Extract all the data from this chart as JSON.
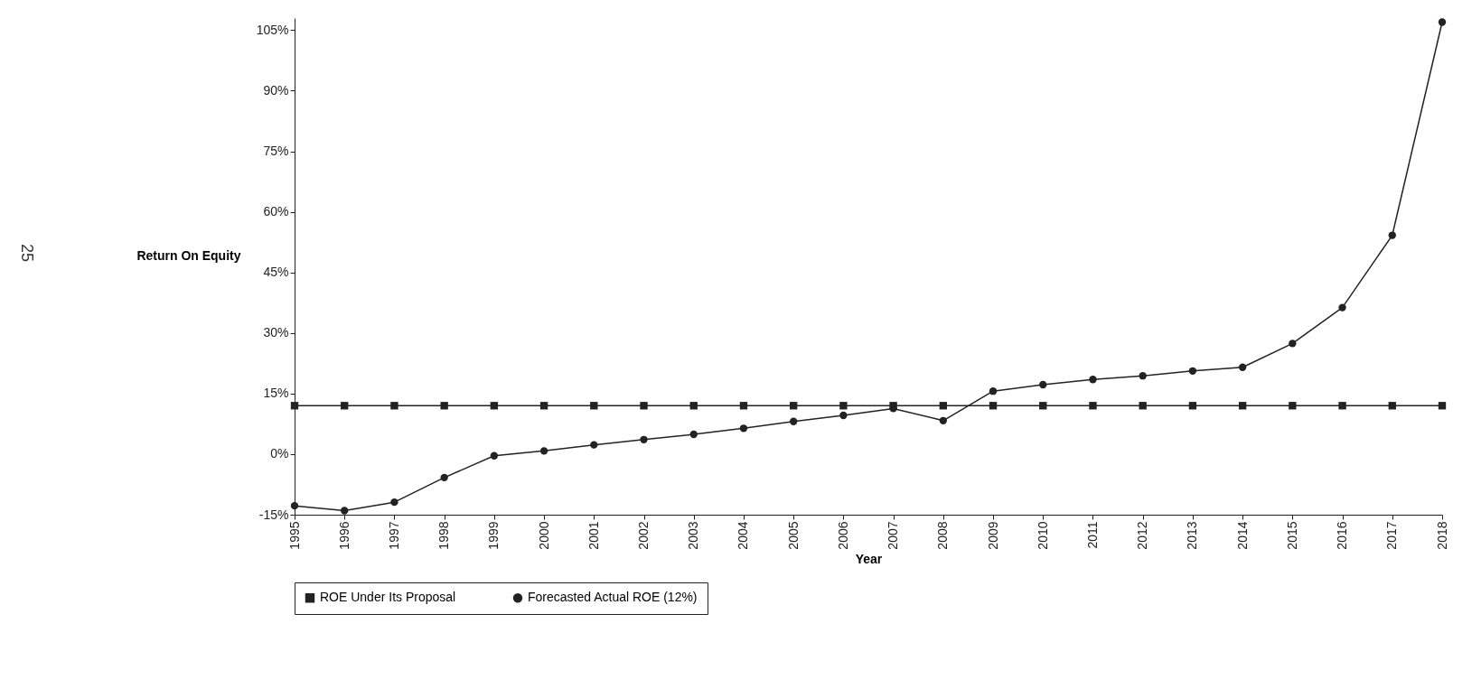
{
  "chart_data": {
    "type": "line",
    "xlabel": "Year",
    "ylabel": "Return On Equity",
    "categories": [
      "1995",
      "1996",
      "1997",
      "1998",
      "1999",
      "2000",
      "2001",
      "2002",
      "2003",
      "2004",
      "2005",
      "2006",
      "2007",
      "2008",
      "2009",
      "2010",
      "2011",
      "2012",
      "2013",
      "2014",
      "2015",
      "2016",
      "2017",
      "2018"
    ],
    "series": [
      {
        "name": "ROE Under Its Proposal",
        "color": "#222222",
        "marker": "square",
        "values": [
          12,
          12,
          12,
          12,
          12,
          12,
          12,
          12,
          12,
          12,
          12,
          12,
          12,
          12,
          12,
          12,
          12,
          12,
          12,
          12,
          12,
          12,
          12,
          12
        ]
      },
      {
        "name": "Forecasted Actual ROE (12%)",
        "color": "#222222",
        "marker": "circle",
        "values": [
          -12.8,
          -14,
          -11.9,
          -5.8,
          -0.4,
          0.8,
          2.3,
          3.6,
          4.9,
          6.4,
          8.1,
          9.6,
          11.3,
          8.3,
          15.6,
          17.2,
          18.5,
          19.4,
          20.6,
          21.5,
          27.4,
          36.3,
          54.2,
          107
        ]
      }
    ],
    "ylim": [
      -15,
      108
    ],
    "yticks": [
      {
        "value": -15,
        "label": "-15%"
      },
      {
        "value": 0,
        "label": "0%"
      },
      {
        "value": 15,
        "label": "15%"
      },
      {
        "value": 30,
        "label": "30%"
      },
      {
        "value": 45,
        "label": "45%"
      },
      {
        "value": 60,
        "label": "60%"
      },
      {
        "value": 75,
        "label": "75%"
      },
      {
        "value": 90,
        "label": "90%"
      },
      {
        "value": 105,
        "label": "105%"
      }
    ],
    "grid": false,
    "legend": "bottom",
    "line_style": "solid",
    "annotations": [
      "25"
    ]
  }
}
